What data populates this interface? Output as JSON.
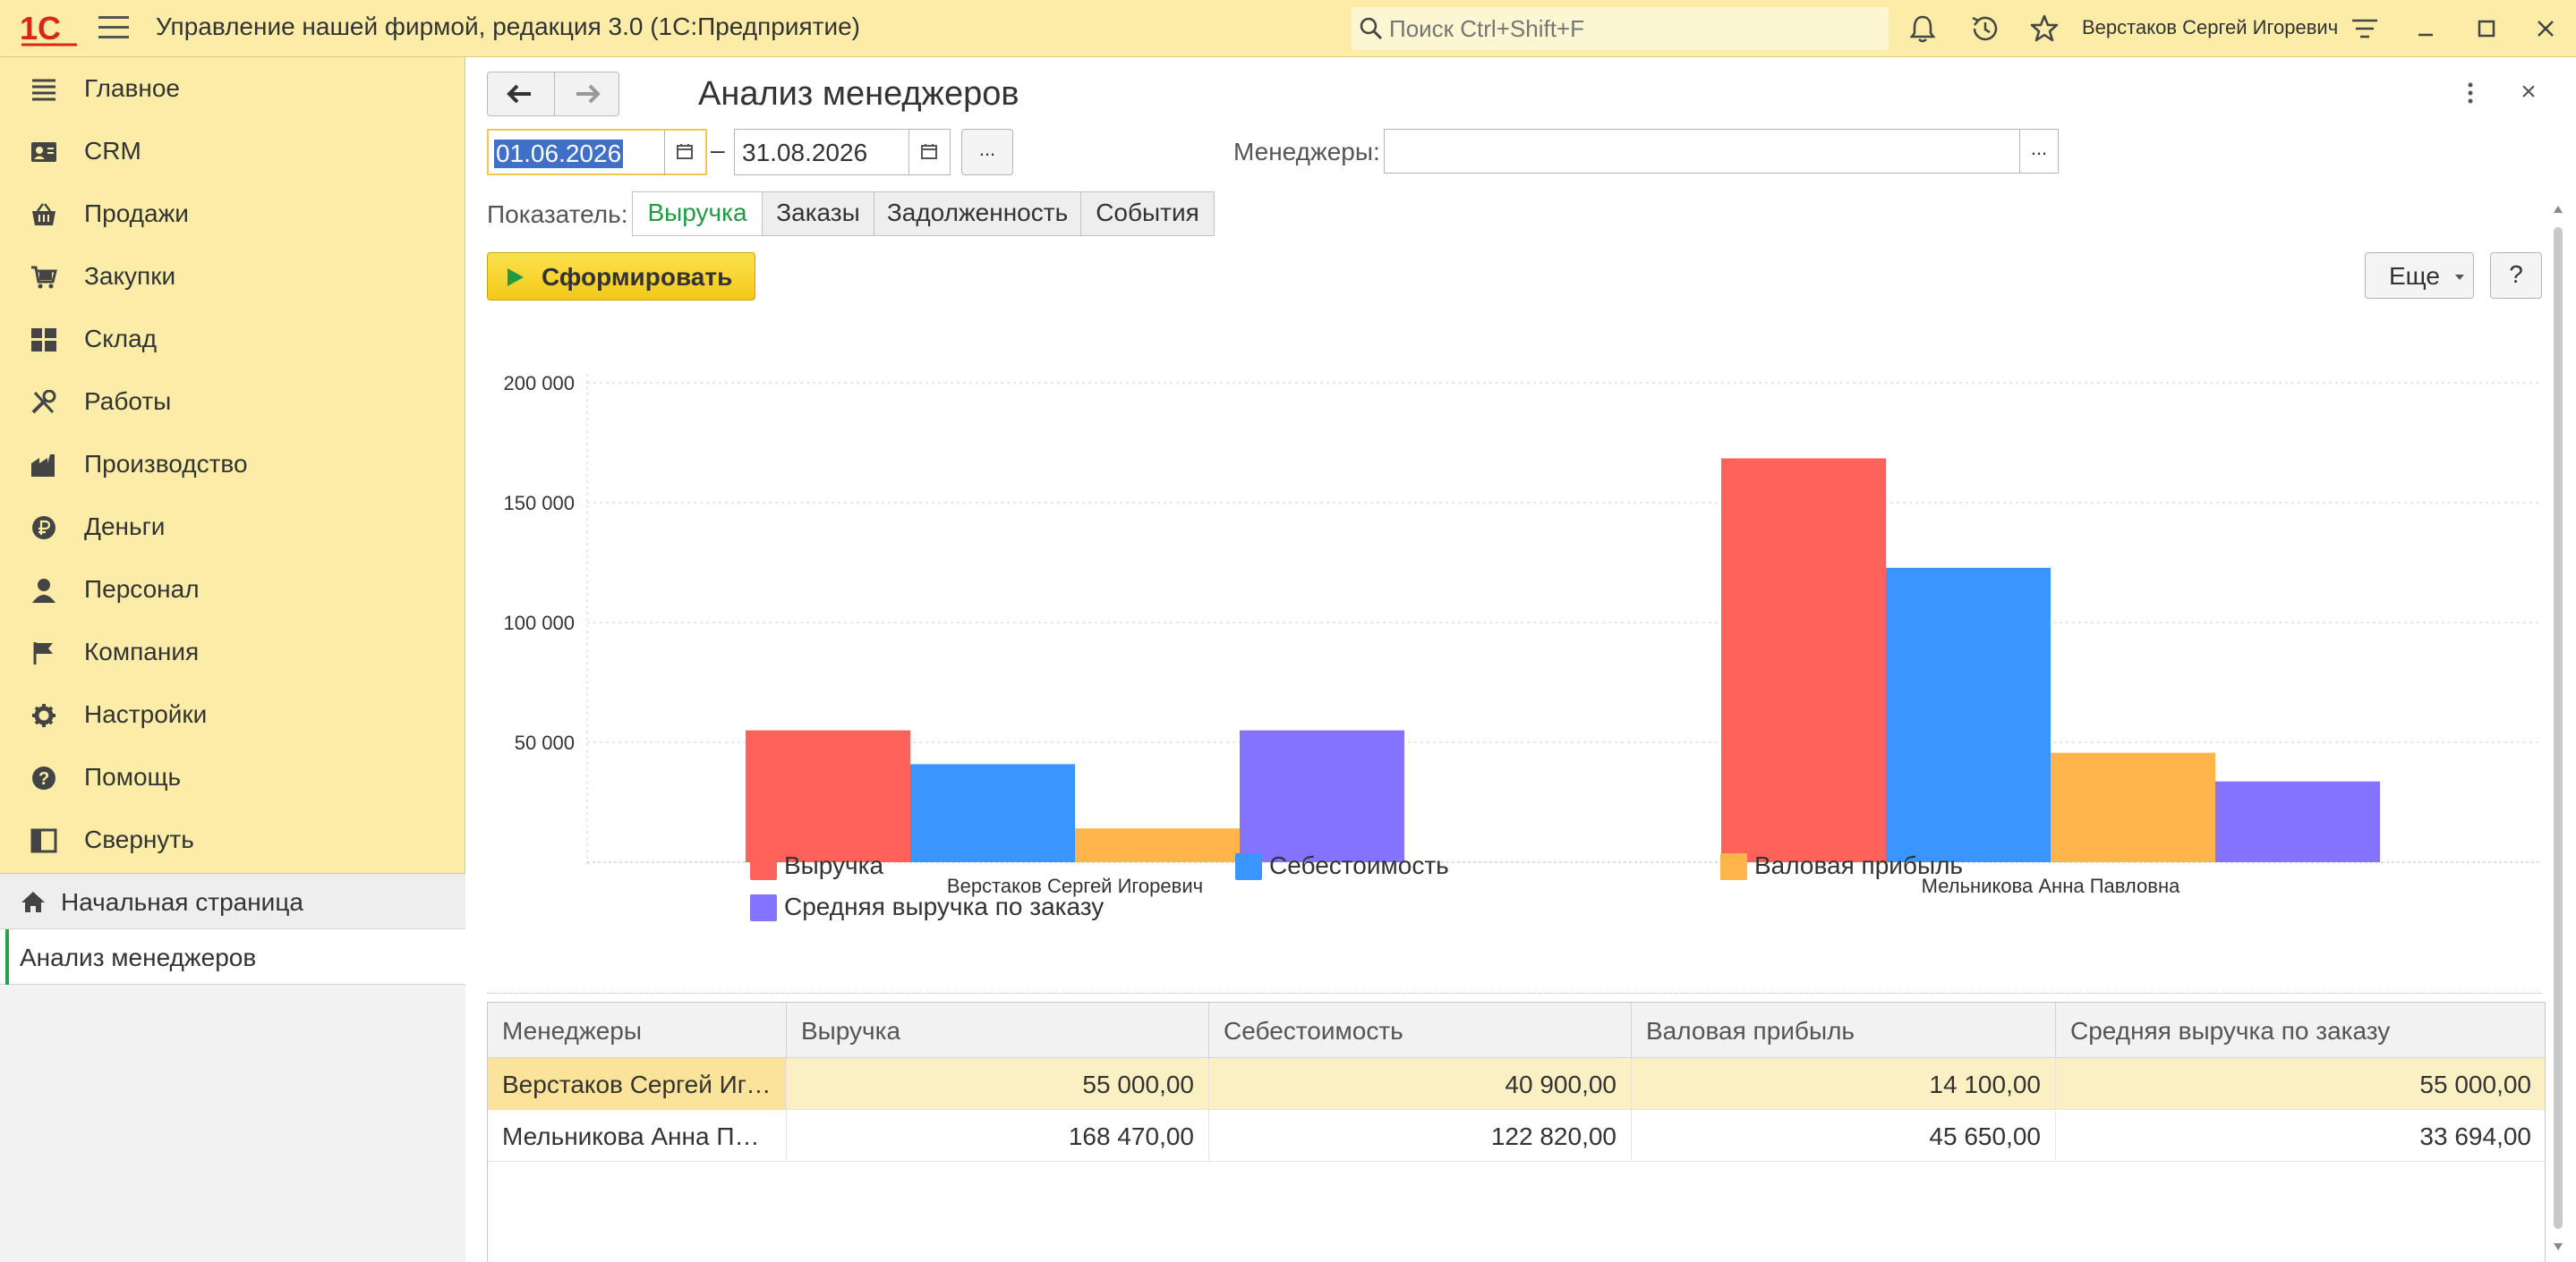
{
  "titlebar": {
    "app_title": "Управление нашей фирмой, редакция 3.0  (1С:Предприятие)",
    "search_placeholder": "Поиск Ctrl+Shift+F",
    "user": "Верстаков Сергей Игоревич"
  },
  "sidebar": {
    "items": [
      {
        "label": "Главное",
        "icon": "menu-lines-icon"
      },
      {
        "label": "CRM",
        "icon": "contact-card-icon"
      },
      {
        "label": "Продажи",
        "icon": "basket-icon"
      },
      {
        "label": "Закупки",
        "icon": "cart-icon"
      },
      {
        "label": "Склад",
        "icon": "warehouse-grid-icon"
      },
      {
        "label": "Работы",
        "icon": "tools-icon"
      },
      {
        "label": "Производство",
        "icon": "factory-icon"
      },
      {
        "label": "Деньги",
        "icon": "ruble-coin-icon"
      },
      {
        "label": "Персонал",
        "icon": "person-icon"
      },
      {
        "label": "Компания",
        "icon": "flag-icon"
      },
      {
        "label": "Настройки",
        "icon": "gear-icon"
      },
      {
        "label": "Помощь",
        "icon": "question-circle-icon"
      },
      {
        "label": "Свернуть",
        "icon": "collapse-panel-icon"
      }
    ],
    "open_windows": {
      "home": "Начальная страница",
      "current": "Анализ менеджеров"
    }
  },
  "form": {
    "title": "Анализ менеджеров",
    "date_from": "01.06.2026",
    "date_to": "31.08.2026",
    "dash": "–",
    "dots": "...",
    "managers_label": "Менеджеры:",
    "managers_value": "",
    "indicator_label": "Показатель:",
    "indicator_tabs": [
      "Выручка",
      "Заказы",
      "Задолженность",
      "События"
    ],
    "indicator_active": "Выручка",
    "generate_label": "Сформировать",
    "more_label": "Еще",
    "help_label": "?",
    "close_label": "×"
  },
  "colors": {
    "revenue": "#ff625a",
    "cost": "#3a95ff",
    "gross_profit": "#ffb54c",
    "avg_order": "#8373ff",
    "accent_green": "#229a44",
    "panel_yellow": "#fbeda8"
  },
  "chart_data": {
    "type": "bar",
    "categories": [
      "Верстаков Сергей Игоревич",
      "Мельникова Анна Павловна"
    ],
    "series": [
      {
        "name": "Выручка",
        "values": [
          55000,
          168470
        ]
      },
      {
        "name": "Себестоимость",
        "values": [
          40900,
          122820
        ]
      },
      {
        "name": "Валовая прибыль",
        "values": [
          14100,
          45650
        ]
      },
      {
        "name": "Средняя выручка по заказу",
        "values": [
          55000,
          33694
        ]
      }
    ],
    "ylim": [
      0,
      200000
    ],
    "yticks": [
      "200 000",
      "150 000",
      "100 000",
      "50 000"
    ],
    "grid": true,
    "legend_position": "bottom"
  },
  "table": {
    "headers": [
      "Менеджеры",
      "Выручка",
      "Себестоимость",
      "Валовая прибыль",
      "Средняя выручка по заказу"
    ],
    "rows": [
      [
        "Верстаков Сергей Игоревич",
        "55 000,00",
        "40 900,00",
        "14 100,00",
        "55 000,00"
      ],
      [
        "Мельникова Анна Павловна",
        "168 470,00",
        "122 820,00",
        "45 650,00",
        "33 694,00"
      ]
    ]
  }
}
